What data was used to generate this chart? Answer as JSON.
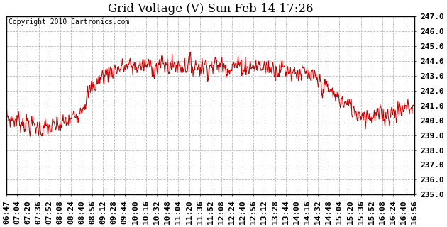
{
  "title": "Grid Voltage (V) Sun Feb 14 17:26",
  "copyright_text": "Copyright 2010 Cartronics.com",
  "line_color": "#cc0000",
  "background_color": "#ffffff",
  "grid_color": "#bbbbbb",
  "ylim": [
    235.0,
    247.0
  ],
  "ytick_min": 235.0,
  "ytick_max": 247.0,
  "ytick_step": 1.0,
  "x_labels": [
    "06:47",
    "07:04",
    "07:20",
    "07:36",
    "07:52",
    "08:08",
    "08:24",
    "08:40",
    "08:56",
    "09:12",
    "09:28",
    "09:44",
    "10:00",
    "10:16",
    "10:32",
    "10:48",
    "11:04",
    "11:20",
    "11:36",
    "11:52",
    "12:08",
    "12:24",
    "12:40",
    "12:56",
    "13:12",
    "13:28",
    "13:44",
    "14:00",
    "14:16",
    "14:32",
    "14:48",
    "15:04",
    "15:20",
    "15:36",
    "15:52",
    "16:08",
    "16:24",
    "16:40",
    "16:56"
  ],
  "seed": 7,
  "n_points": 780,
  "title_fontsize": 12,
  "copyright_fontsize": 7,
  "tick_fontsize": 8,
  "line_width": 0.75
}
